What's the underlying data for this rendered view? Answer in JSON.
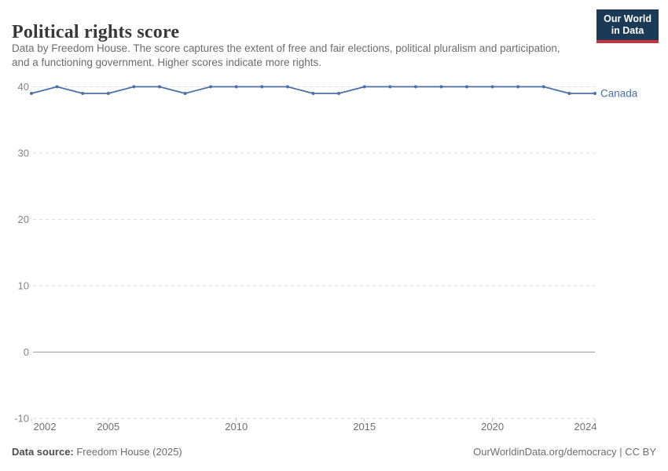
{
  "header": {
    "title": "Political rights score",
    "subtitle": "Data by Freedom House. The score captures the extent of free and fair elections, political pluralism and participation, and a functioning government. Higher scores indicate more rights.",
    "logo_line1": "Our World",
    "logo_line2": "in Data"
  },
  "chart_data": {
    "type": "line",
    "title": "Political rights score",
    "xlabel": "",
    "ylabel": "",
    "xlim": [
      2002,
      2024
    ],
    "ylim": [
      -10,
      40
    ],
    "grid": "horizontal dashed",
    "x_ticks": [
      2002,
      2005,
      2010,
      2015,
      2020,
      2024
    ],
    "y_ticks": [
      40,
      30,
      20,
      10,
      0,
      -10
    ],
    "zero_line": 0,
    "series": [
      {
        "name": "Canada",
        "color": "#4C6FA5",
        "points": [
          [
            2002,
            39
          ],
          [
            2003,
            40
          ],
          [
            2004,
            39
          ],
          [
            2005,
            39
          ],
          [
            2006,
            40
          ],
          [
            2007,
            40
          ],
          [
            2008,
            39
          ],
          [
            2009,
            40
          ],
          [
            2010,
            40
          ],
          [
            2011,
            40
          ],
          [
            2012,
            40
          ],
          [
            2013,
            39
          ],
          [
            2014,
            39
          ],
          [
            2015,
            40
          ],
          [
            2016,
            40
          ],
          [
            2017,
            40
          ],
          [
            2018,
            40
          ],
          [
            2019,
            40
          ],
          [
            2020,
            40
          ],
          [
            2021,
            40
          ],
          [
            2022,
            40
          ],
          [
            2023,
            39
          ],
          [
            2024,
            39
          ]
        ]
      }
    ],
    "legend_position": "right-of-line-end"
  },
  "footer": {
    "source_label": "Data source:",
    "source_value": " Freedom House (2025)",
    "attribution": "OurWorldinData.org/democracy | CC BY"
  },
  "colors": {
    "line": "#4C6FA5",
    "logo_navy": "#1b3a55",
    "logo_red": "#c5313f",
    "grid": "#dcdcdc",
    "axis_dashed": "#d6d6d6",
    "zero_line": "#9e9e9e",
    "tick": "#c4c4c4",
    "y_label": "#848484",
    "x_label": "#6f6f6f"
  }
}
